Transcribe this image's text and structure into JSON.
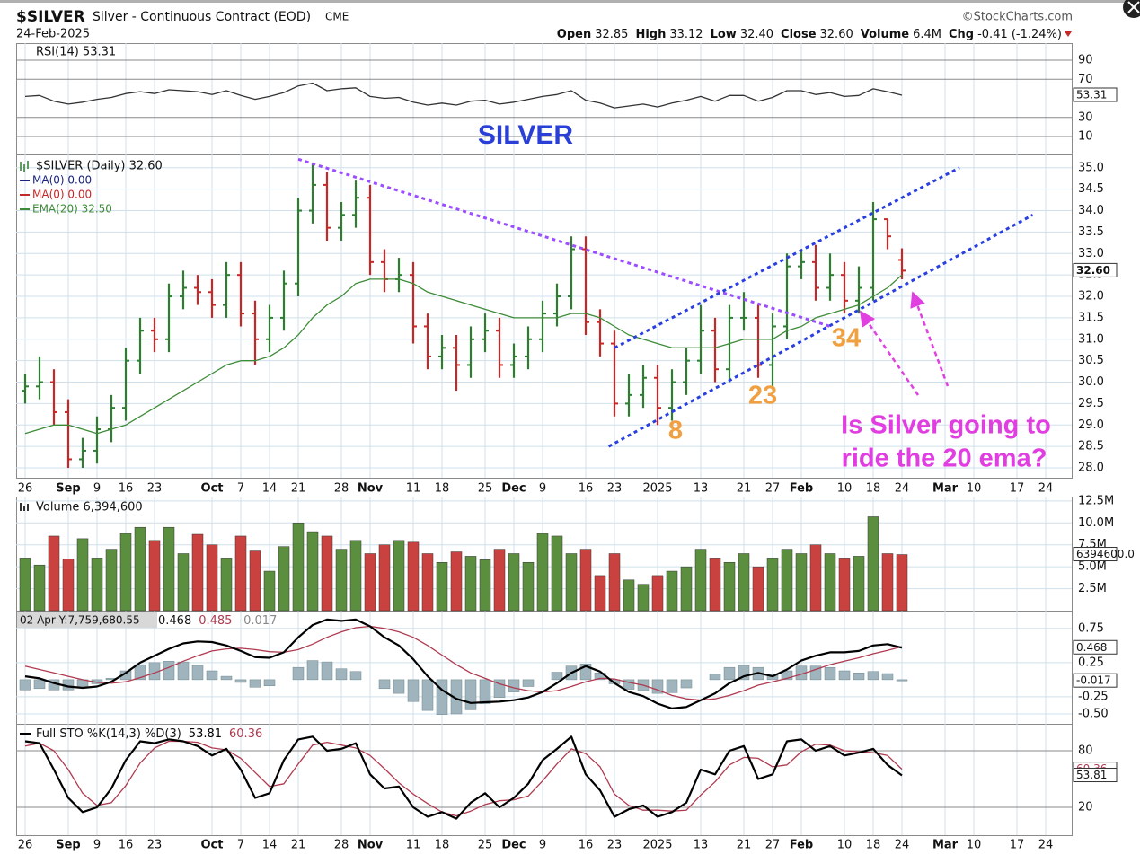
{
  "header": {
    "symbol": "$SILVER",
    "description": "Silver - Continuous Contract (EOD)",
    "exchange": "CME",
    "source": "©StockCharts.com",
    "date": "24-Feb-2025",
    "quote": [
      {
        "label": "Open",
        "value": "32.85"
      },
      {
        "label": "High",
        "value": "33.12"
      },
      {
        "label": "Low",
        "value": "32.40"
      },
      {
        "label": "Close",
        "value": "32.60"
      },
      {
        "label": "Volume",
        "value": "6.4M"
      },
      {
        "label": "Chg",
        "value": "-0.41 (-1.24%)"
      }
    ]
  },
  "chart_data": [
    {
      "type": "line",
      "title": "RSI(14) 53.31",
      "annotation": "SILVER",
      "color": "#333333",
      "last_label": "53.31",
      "values": [
        52,
        53,
        47,
        44,
        46,
        49,
        51,
        55,
        57,
        55,
        59,
        58,
        57,
        54,
        58,
        53,
        49,
        52,
        56,
        63,
        66,
        58,
        60,
        61,
        52,
        50,
        51,
        46,
        43,
        45,
        43,
        47,
        48,
        44,
        46,
        49,
        52,
        54,
        58,
        48,
        45,
        40,
        42,
        44,
        41,
        45,
        48,
        52,
        47,
        53,
        53,
        47,
        51,
        58,
        58,
        54,
        56,
        52,
        53,
        60,
        57,
        53.31,
        null,
        null,
        null,
        null,
        null,
        null,
        null,
        null,
        null,
        null
      ],
      "ylim": [
        -8.8,
        107.9
      ],
      "yticks": [
        10,
        30,
        70,
        90
      ]
    },
    {
      "type": "ohlc",
      "title": "$SILVER (Daily) 32.60",
      "up_color": "#2e7d32",
      "down_color": "#c62828",
      "last_label": "32.60",
      "categories": [
        "26",
        null,
        null,
        "Sep",
        null,
        "9",
        null,
        "16",
        null,
        "23",
        null,
        null,
        null,
        "Oct",
        null,
        "7",
        null,
        "14",
        null,
        "21",
        null,
        null,
        "28",
        null,
        "Nov",
        null,
        null,
        "11",
        null,
        "18",
        null,
        null,
        "25",
        null,
        "Dec",
        null,
        "9",
        null,
        null,
        "16",
        null,
        "23",
        null,
        null,
        "2025",
        null,
        null,
        "13",
        null,
        null,
        "21",
        null,
        "27",
        null,
        "Feb",
        null,
        null,
        "10",
        null,
        "18",
        null,
        "24",
        null,
        null,
        "Mar",
        null,
        "10",
        null,
        null,
        "17",
        null,
        "24"
      ],
      "open": [
        29.8,
        29.9,
        30.0,
        29.3,
        28.2,
        28.4,
        28.9,
        29.4,
        30.5,
        31.2,
        31.0,
        32.0,
        32.2,
        32.1,
        31.8,
        32.5,
        31.6,
        31.0,
        31.5,
        32.3,
        34.0,
        34.6,
        33.6,
        33.9,
        34.3,
        32.8,
        32.4,
        32.5,
        31.3,
        30.6,
        30.8,
        30.4,
        31.0,
        31.2,
        30.4,
        30.6,
        31.0,
        31.6,
        32.0,
        33.1,
        31.4,
        30.9,
        29.5,
        29.7,
        30.1,
        29.4,
        30.0,
        30.5,
        31.2,
        30.3,
        31.5,
        31.5,
        30.4,
        31.3,
        32.7,
        32.8,
        32.2,
        32.5,
        31.9,
        32.2,
        33.8,
        32.85,
        null,
        null,
        null,
        null,
        null,
        null,
        null,
        null,
        null,
        null
      ],
      "high": [
        30.2,
        30.6,
        30.3,
        29.6,
        28.7,
        29.2,
        29.7,
        30.8,
        31.5,
        31.5,
        32.3,
        32.6,
        32.5,
        32.4,
        32.8,
        32.8,
        31.9,
        31.8,
        32.6,
        34.3,
        35.1,
        34.9,
        34.2,
        34.7,
        34.6,
        33.1,
        32.9,
        32.8,
        31.6,
        31.1,
        31.1,
        31.3,
        31.6,
        31.5,
        30.9,
        31.3,
        31.9,
        32.3,
        33.4,
        33.4,
        31.7,
        31.2,
        30.2,
        30.4,
        30.4,
        30.3,
        30.8,
        31.8,
        31.5,
        31.8,
        32.1,
        31.8,
        31.6,
        33.0,
        33.1,
        33.2,
        33.0,
        32.8,
        32.7,
        34.2,
        33.8,
        33.12,
        null,
        null,
        null,
        null,
        null,
        null,
        null,
        null,
        null,
        null
      ],
      "low": [
        29.5,
        29.6,
        29.0,
        28.0,
        28.0,
        28.1,
        28.6,
        29.1,
        30.2,
        30.7,
        30.7,
        31.7,
        31.8,
        31.5,
        31.5,
        31.3,
        30.4,
        30.7,
        31.2,
        32.0,
        33.7,
        33.3,
        33.3,
        33.6,
        32.5,
        32.1,
        32.1,
        30.9,
        30.3,
        30.3,
        29.8,
        30.1,
        30.7,
        30.1,
        30.1,
        30.3,
        30.7,
        31.3,
        31.7,
        31.1,
        30.6,
        29.2,
        29.2,
        29.4,
        29.0,
        29.1,
        29.7,
        30.2,
        30.0,
        30.0,
        31.2,
        30.1,
        29.9,
        31.0,
        32.4,
        31.9,
        31.9,
        31.6,
        31.6,
        31.9,
        33.1,
        32.4,
        null,
        null,
        null,
        null,
        null,
        null,
        null,
        null,
        null,
        null
      ],
      "close": [
        29.9,
        30.0,
        29.3,
        28.2,
        28.4,
        28.9,
        29.4,
        30.5,
        31.2,
        31.0,
        32.0,
        32.2,
        32.1,
        31.8,
        32.5,
        31.6,
        31.0,
        31.5,
        32.3,
        34.0,
        34.6,
        33.6,
        33.9,
        34.3,
        32.8,
        32.4,
        32.5,
        31.3,
        30.6,
        30.8,
        30.4,
        31.0,
        31.2,
        30.4,
        30.6,
        31.0,
        31.6,
        32.0,
        33.1,
        31.4,
        30.9,
        29.5,
        29.7,
        30.1,
        29.4,
        30.0,
        30.5,
        31.2,
        30.3,
        31.5,
        31.5,
        30.4,
        31.3,
        32.7,
        32.8,
        32.2,
        32.5,
        31.9,
        32.2,
        33.8,
        33.4,
        32.6,
        null,
        null,
        null,
        null,
        null,
        null,
        null,
        null,
        null,
        null
      ],
      "indicators": [
        {
          "name": "MA(0) 0.00",
          "color": "#1a237e"
        },
        {
          "name": "MA(0) 0.00",
          "color": "#c62828"
        },
        {
          "name": "EMA(20) 32.50",
          "color": "#3d8b37",
          "values": [
            28.8,
            28.9,
            29.0,
            29.0,
            28.9,
            28.8,
            28.9,
            29.0,
            29.2,
            29.4,
            29.6,
            29.8,
            30.0,
            30.2,
            30.4,
            30.5,
            30.5,
            30.6,
            30.8,
            31.1,
            31.5,
            31.8,
            32.0,
            32.3,
            32.4,
            32.4,
            32.4,
            32.3,
            32.1,
            32.0,
            31.9,
            31.8,
            31.7,
            31.6,
            31.5,
            31.5,
            31.5,
            31.5,
            31.6,
            31.6,
            31.5,
            31.3,
            31.1,
            31.0,
            30.9,
            30.8,
            30.8,
            30.8,
            30.8,
            30.9,
            31.0,
            31.0,
            31.0,
            31.2,
            31.3,
            31.5,
            31.6,
            31.7,
            31.8,
            32.0,
            32.2,
            32.5,
            null,
            null,
            null,
            null,
            null,
            null,
            null,
            null,
            null,
            null
          ]
        }
      ],
      "trendlines": [
        {
          "color": "#9b4dff",
          "x": [
            19,
            56
          ],
          "y": [
            35.2,
            31.3
          ]
        },
        {
          "color": "#2a3fe0",
          "x": [
            41,
            65
          ],
          "y": [
            30.8,
            35.0
          ]
        },
        {
          "color": "#2a3fe0",
          "x": [
            40.6,
            70.1
          ],
          "y": [
            28.5,
            33.9
          ]
        }
      ],
      "annotations": [
        "8",
        "23",
        "34",
        "Is Silver going to",
        "ride the 20 ema?"
      ],
      "ylim": [
        27.77,
        35.31
      ],
      "yticks": [
        {
          "value": 28,
          "label": "28.0"
        },
        28.5,
        {
          "value": 29,
          "label": "29.0"
        },
        29.5,
        {
          "value": 30,
          "label": "30.0"
        },
        30.5,
        {
          "value": 31,
          "label": "31.0"
        },
        31.5,
        {
          "value": 32,
          "label": "32.0"
        },
        32.5,
        {
          "value": 33,
          "label": "33.0"
        },
        33.5,
        {
          "value": 34,
          "label": "34.0"
        },
        34.5,
        {
          "value": 35,
          "label": "35.0"
        }
      ]
    },
    {
      "type": "bar",
      "title": "Volume 6,394,600",
      "up_color": "#5b8f3f",
      "down_color": "#c9423f",
      "last_label": "6394600.0",
      "values": [
        6000000,
        5200000,
        8500000,
        5900000,
        8200000,
        6000000,
        7000000,
        8800000,
        9500000,
        8000000,
        9500000,
        6500000,
        8700000,
        7500000,
        6000000,
        8500000,
        6800000,
        4500000,
        7300000,
        10000000,
        9000000,
        8500000,
        7000000,
        8000000,
        6500000,
        7500000,
        8000000,
        7800000,
        6500000,
        5500000,
        6700000,
        6200000,
        5800000,
        7000000,
        6500000,
        5500000,
        8800000,
        8500000,
        6500000,
        7000000,
        4000000,
        6500000,
        3500000,
        3000000,
        4000000,
        4500000,
        5000000,
        7000000,
        6000000,
        5500000,
        6500000,
        5000000,
        6000000,
        7000000,
        6500000,
        7500000,
        6500000,
        6000000,
        6200000,
        10700000,
        6500000,
        6394600,
        null,
        null,
        null,
        null,
        null,
        null,
        null,
        null,
        null,
        null
      ],
      "ylim": [
        0,
        13000000
      ],
      "yticks": [
        {
          "value": 2500000,
          "label": "2.5M"
        },
        {
          "value": 5000000,
          "label": "5.0M"
        },
        {
          "value": 7500000,
          "label": "7.5M"
        },
        {
          "value": 10000000,
          "label": "10.0M"
        },
        {
          "value": 12500000,
          "label": "12.5M"
        }
      ]
    },
    {
      "type": "macd",
      "header": "02 Apr Y:7,759,680.55",
      "series": [
        {
          "color": "#000000",
          "values": [
            0.05,
            0.02,
            -0.05,
            -0.1,
            -0.12,
            -0.1,
            -0.03,
            0.1,
            0.25,
            0.35,
            0.45,
            0.53,
            0.56,
            0.55,
            0.5,
            0.42,
            0.33,
            0.32,
            0.4,
            0.62,
            0.8,
            0.88,
            0.86,
            0.88,
            0.78,
            0.62,
            0.5,
            0.3,
            0.05,
            -0.15,
            -0.28,
            -0.34,
            -0.33,
            -0.32,
            -0.3,
            -0.26,
            -0.18,
            -0.05,
            0.1,
            0.2,
            0.12,
            -0.05,
            -0.18,
            -0.24,
            -0.35,
            -0.42,
            -0.4,
            -0.3,
            -0.2,
            -0.05,
            0.05,
            0.1,
            0.05,
            0.15,
            0.28,
            0.35,
            0.4,
            0.4,
            0.42,
            0.5,
            0.52,
            0.468,
            null,
            null,
            null,
            null,
            null,
            null,
            null,
            null,
            null,
            null
          ]
        },
        {
          "color": "#b03a50",
          "values": [
            0.2,
            0.15,
            0.1,
            0.05,
            0,
            -0.04,
            -0.05,
            -0.03,
            0.03,
            0.1,
            0.18,
            0.27,
            0.35,
            0.42,
            0.45,
            0.46,
            0.44,
            0.41,
            0.4,
            0.44,
            0.52,
            0.62,
            0.7,
            0.76,
            0.78,
            0.75,
            0.7,
            0.62,
            0.5,
            0.36,
            0.22,
            0.1,
            0.02,
            -0.06,
            -0.12,
            -0.16,
            -0.18,
            -0.16,
            -0.1,
            -0.03,
            0.02,
            0.01,
            -0.04,
            -0.08,
            -0.15,
            -0.23,
            -0.28,
            -0.3,
            -0.28,
            -0.23,
            -0.16,
            -0.08,
            -0.03,
            0.02,
            0.08,
            0.15,
            0.22,
            0.27,
            0.32,
            0.38,
            0.43,
            0.485,
            null,
            null,
            null,
            null,
            null,
            null,
            null,
            null,
            null,
            null
          ]
        },
        {
          "color": "#9fb4bd",
          "values": [
            -0.15,
            -0.13,
            -0.15,
            -0.15,
            -0.12,
            -0.06,
            0.02,
            0.13,
            0.22,
            0.25,
            0.27,
            0.26,
            0.21,
            0.13,
            0.05,
            -0.04,
            -0.11,
            -0.09,
            0,
            0.18,
            0.28,
            0.26,
            0.16,
            0.12,
            0,
            -0.13,
            -0.2,
            -0.32,
            -0.45,
            -0.51,
            -0.5,
            -0.44,
            -0.35,
            -0.26,
            -0.18,
            -0.1,
            0,
            0.11,
            0.2,
            0.23,
            0.1,
            -0.06,
            -0.14,
            -0.16,
            -0.2,
            -0.19,
            -0.12,
            0,
            0.08,
            0.18,
            0.21,
            0.18,
            0.08,
            0.13,
            0.2,
            0.2,
            0.18,
            0.13,
            0.1,
            0.12,
            0.09,
            -0.017,
            null,
            null,
            null,
            null,
            null,
            null,
            null,
            null,
            null,
            null
          ]
        }
      ],
      "ylim": [
        -0.645,
        1.01
      ],
      "yticks": [
        -0.25,
        {
          "value": -0.5,
          "label": "-0.50"
        },
        0.25,
        0.75
      ]
    },
    {
      "type": "stochastic",
      "title": "Full STO %K(14,3) %D(3)",
      "series": [
        {
          "color": "#000000",
          "values": [
            90,
            88,
            60,
            30,
            15,
            20,
            40,
            70,
            90,
            88,
            92,
            90,
            85,
            75,
            82,
            60,
            30,
            35,
            70,
            92,
            95,
            80,
            82,
            88,
            55,
            40,
            42,
            20,
            10,
            15,
            8,
            25,
            35,
            20,
            30,
            45,
            70,
            82,
            95,
            55,
            38,
            10,
            18,
            22,
            10,
            15,
            25,
            60,
            55,
            80,
            85,
            50,
            55,
            90,
            92,
            80,
            85,
            75,
            78,
            82,
            65,
            53.81,
            null,
            null,
            null,
            null,
            null,
            null,
            null,
            null,
            null,
            null
          ]
        },
        {
          "color": "#b03a50",
          "values": [
            85,
            88,
            80,
            60,
            35,
            22,
            25,
            43,
            67,
            83,
            90,
            90,
            89,
            83,
            81,
            72,
            57,
            42,
            45,
            66,
            86,
            89,
            86,
            83,
            75,
            61,
            46,
            34,
            24,
            15,
            11,
            16,
            23,
            27,
            28,
            32,
            48,
            66,
            82,
            77,
            63,
            34,
            22,
            17,
            17,
            16,
            17,
            33,
            47,
            65,
            73,
            72,
            63,
            65,
            79,
            87,
            86,
            80,
            79,
            78,
            75,
            60.36,
            null,
            null,
            null,
            null,
            null,
            null,
            null,
            null,
            null,
            null
          ]
        }
      ],
      "ylim": [
        -9.5,
        108.6
      ],
      "yticks": [
        20,
        80
      ]
    }
  ]
}
